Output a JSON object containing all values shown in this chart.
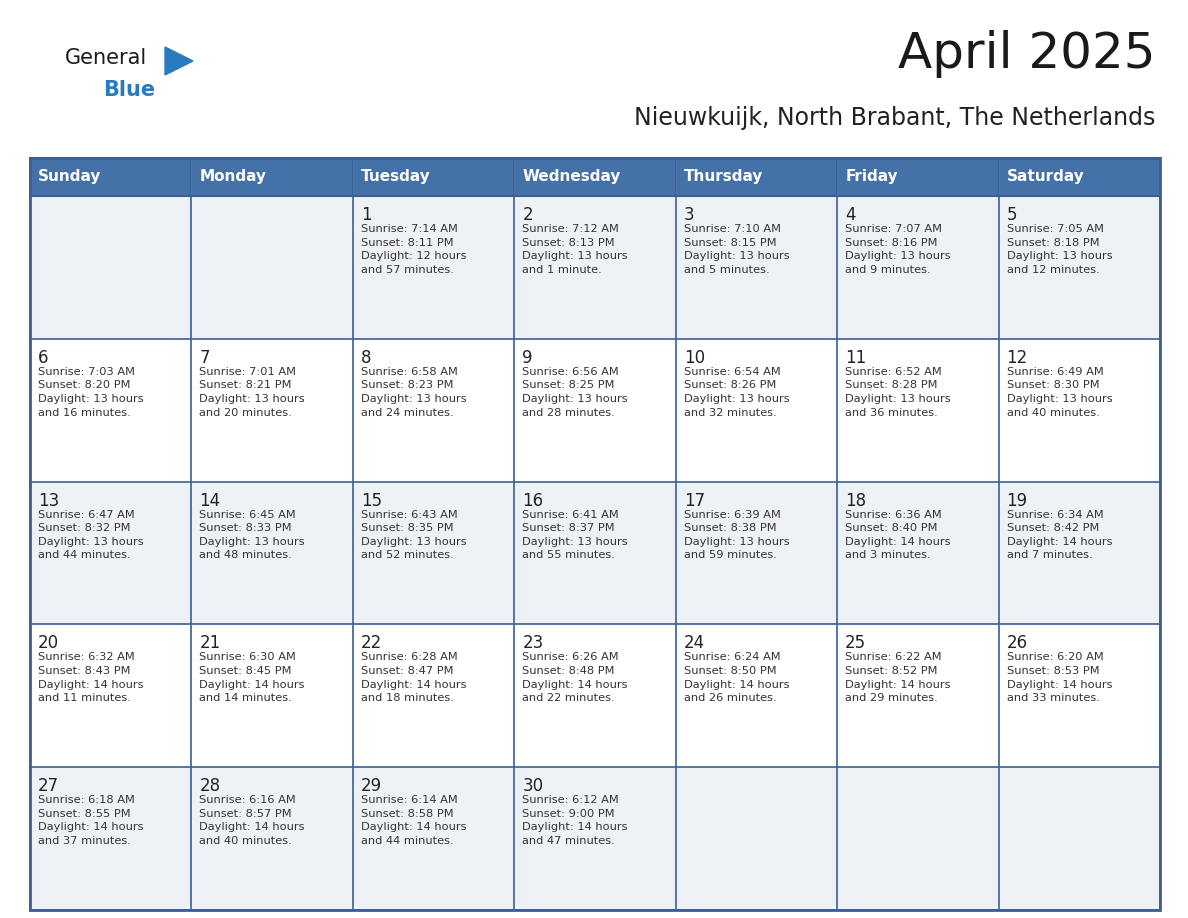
{
  "title": "April 2025",
  "subtitle": "Nieuwkuijk, North Brabant, The Netherlands",
  "days_of_week": [
    "Sunday",
    "Monday",
    "Tuesday",
    "Wednesday",
    "Thursday",
    "Friday",
    "Saturday"
  ],
  "header_bg": "#4472a8",
  "header_text": "#ffffff",
  "row_bg_light": "#eef2f7",
  "row_bg_white": "#ffffff",
  "cell_border": "#3a5f96",
  "row_divider": "#3a5f96",
  "day_num_color": "#222222",
  "info_color": "#333333",
  "title_color": "#1a1a1a",
  "subtitle_color": "#222222",
  "logo_general_color": "#1a1a1a",
  "logo_blue_color": "#2a7abf",
  "weeks": [
    [
      {
        "day": "",
        "info": ""
      },
      {
        "day": "",
        "info": ""
      },
      {
        "day": "1",
        "info": "Sunrise: 7:14 AM\nSunset: 8:11 PM\nDaylight: 12 hours\nand 57 minutes."
      },
      {
        "day": "2",
        "info": "Sunrise: 7:12 AM\nSunset: 8:13 PM\nDaylight: 13 hours\nand 1 minute."
      },
      {
        "day": "3",
        "info": "Sunrise: 7:10 AM\nSunset: 8:15 PM\nDaylight: 13 hours\nand 5 minutes."
      },
      {
        "day": "4",
        "info": "Sunrise: 7:07 AM\nSunset: 8:16 PM\nDaylight: 13 hours\nand 9 minutes."
      },
      {
        "day": "5",
        "info": "Sunrise: 7:05 AM\nSunset: 8:18 PM\nDaylight: 13 hours\nand 12 minutes."
      }
    ],
    [
      {
        "day": "6",
        "info": "Sunrise: 7:03 AM\nSunset: 8:20 PM\nDaylight: 13 hours\nand 16 minutes."
      },
      {
        "day": "7",
        "info": "Sunrise: 7:01 AM\nSunset: 8:21 PM\nDaylight: 13 hours\nand 20 minutes."
      },
      {
        "day": "8",
        "info": "Sunrise: 6:58 AM\nSunset: 8:23 PM\nDaylight: 13 hours\nand 24 minutes."
      },
      {
        "day": "9",
        "info": "Sunrise: 6:56 AM\nSunset: 8:25 PM\nDaylight: 13 hours\nand 28 minutes."
      },
      {
        "day": "10",
        "info": "Sunrise: 6:54 AM\nSunset: 8:26 PM\nDaylight: 13 hours\nand 32 minutes."
      },
      {
        "day": "11",
        "info": "Sunrise: 6:52 AM\nSunset: 8:28 PM\nDaylight: 13 hours\nand 36 minutes."
      },
      {
        "day": "12",
        "info": "Sunrise: 6:49 AM\nSunset: 8:30 PM\nDaylight: 13 hours\nand 40 minutes."
      }
    ],
    [
      {
        "day": "13",
        "info": "Sunrise: 6:47 AM\nSunset: 8:32 PM\nDaylight: 13 hours\nand 44 minutes."
      },
      {
        "day": "14",
        "info": "Sunrise: 6:45 AM\nSunset: 8:33 PM\nDaylight: 13 hours\nand 48 minutes."
      },
      {
        "day": "15",
        "info": "Sunrise: 6:43 AM\nSunset: 8:35 PM\nDaylight: 13 hours\nand 52 minutes."
      },
      {
        "day": "16",
        "info": "Sunrise: 6:41 AM\nSunset: 8:37 PM\nDaylight: 13 hours\nand 55 minutes."
      },
      {
        "day": "17",
        "info": "Sunrise: 6:39 AM\nSunset: 8:38 PM\nDaylight: 13 hours\nand 59 minutes."
      },
      {
        "day": "18",
        "info": "Sunrise: 6:36 AM\nSunset: 8:40 PM\nDaylight: 14 hours\nand 3 minutes."
      },
      {
        "day": "19",
        "info": "Sunrise: 6:34 AM\nSunset: 8:42 PM\nDaylight: 14 hours\nand 7 minutes."
      }
    ],
    [
      {
        "day": "20",
        "info": "Sunrise: 6:32 AM\nSunset: 8:43 PM\nDaylight: 14 hours\nand 11 minutes."
      },
      {
        "day": "21",
        "info": "Sunrise: 6:30 AM\nSunset: 8:45 PM\nDaylight: 14 hours\nand 14 minutes."
      },
      {
        "day": "22",
        "info": "Sunrise: 6:28 AM\nSunset: 8:47 PM\nDaylight: 14 hours\nand 18 minutes."
      },
      {
        "day": "23",
        "info": "Sunrise: 6:26 AM\nSunset: 8:48 PM\nDaylight: 14 hours\nand 22 minutes."
      },
      {
        "day": "24",
        "info": "Sunrise: 6:24 AM\nSunset: 8:50 PM\nDaylight: 14 hours\nand 26 minutes."
      },
      {
        "day": "25",
        "info": "Sunrise: 6:22 AM\nSunset: 8:52 PM\nDaylight: 14 hours\nand 29 minutes."
      },
      {
        "day": "26",
        "info": "Sunrise: 6:20 AM\nSunset: 8:53 PM\nDaylight: 14 hours\nand 33 minutes."
      }
    ],
    [
      {
        "day": "27",
        "info": "Sunrise: 6:18 AM\nSunset: 8:55 PM\nDaylight: 14 hours\nand 37 minutes."
      },
      {
        "day": "28",
        "info": "Sunrise: 6:16 AM\nSunset: 8:57 PM\nDaylight: 14 hours\nand 40 minutes."
      },
      {
        "day": "29",
        "info": "Sunrise: 6:14 AM\nSunset: 8:58 PM\nDaylight: 14 hours\nand 44 minutes."
      },
      {
        "day": "30",
        "info": "Sunrise: 6:12 AM\nSunset: 9:00 PM\nDaylight: 14 hours\nand 47 minutes."
      },
      {
        "day": "",
        "info": ""
      },
      {
        "day": "",
        "info": ""
      },
      {
        "day": "",
        "info": ""
      }
    ]
  ],
  "row_backgrounds": [
    "#eef2f7",
    "#ffffff",
    "#eef2f7",
    "#ffffff",
    "#eef2f7"
  ]
}
